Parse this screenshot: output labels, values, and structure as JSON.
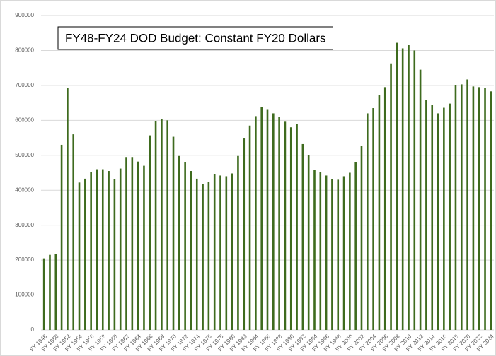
{
  "chart_data": {
    "type": "bar",
    "title": "FY48-FY24 DOD Budget: Constant FY20 Dollars",
    "categories": [
      "FY 1948",
      null,
      "FY 1950",
      null,
      "FY 1952",
      null,
      "FY 1954",
      null,
      "FY 1956",
      null,
      "FY 1958",
      null,
      "FY 1960",
      null,
      "FY 1962",
      null,
      "FY 1964",
      null,
      "FY 1966",
      null,
      "FY 1968",
      null,
      "FY 1970",
      null,
      "FY 1972",
      null,
      "FY 1974",
      null,
      "FY 1976",
      null,
      "FY 1978",
      null,
      "FY 1980",
      null,
      "FY 1982",
      null,
      "FY 1984",
      null,
      "FY 1986",
      null,
      "FY 1988",
      null,
      "FY 1990",
      null,
      "FY 1992",
      null,
      "FY 1994",
      null,
      "FY 1996",
      null,
      "FY 1998",
      null,
      "FY 2000",
      null,
      "FY 2002",
      null,
      "FY 2004",
      null,
      "FY 2006",
      null,
      "FY 2008",
      null,
      "FY 2010",
      null,
      "FY 2012",
      null,
      "FY 2014",
      null,
      "FY 2016",
      null,
      "FY 2018",
      null,
      "FY 2020",
      null,
      "FY 2022",
      null,
      "FY 2024"
    ],
    "values": [
      205000,
      215000,
      218000,
      530000,
      692000,
      560000,
      422000,
      433000,
      452000,
      460000,
      460000,
      455000,
      432000,
      462000,
      495000,
      495000,
      482000,
      470000,
      557000,
      597000,
      603000,
      600000,
      553000,
      498000,
      480000,
      455000,
      433000,
      418000,
      423000,
      445000,
      442000,
      440000,
      448000,
      498000,
      548000,
      585000,
      612000,
      638000,
      630000,
      620000,
      610000,
      596000,
      580000,
      590000,
      532000,
      500000,
      458000,
      452000,
      442000,
      432000,
      430000,
      440000,
      450000,
      480000,
      527000,
      620000,
      635000,
      672000,
      695000,
      763000,
      822000,
      806000,
      816000,
      800000,
      745000,
      658000,
      645000,
      620000,
      636000,
      648000,
      700000,
      703000,
      717000,
      697000,
      695000,
      692000,
      683000
    ],
    "color": "#3e6b1e",
    "ylim": [
      0,
      900000
    ],
    "yticks": [
      0,
      100000,
      200000,
      300000,
      400000,
      500000,
      600000,
      700000,
      800000,
      900000
    ],
    "grid": true
  }
}
